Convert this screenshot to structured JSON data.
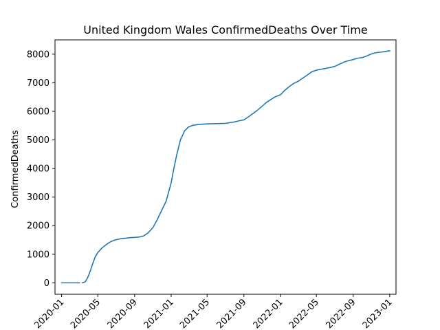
{
  "chart_data": {
    "type": "line",
    "title": "United Kingdom Wales ConfirmedDeaths Over Time",
    "xlabel": "",
    "ylabel": "ConfirmedDeaths",
    "x_ticks": [
      "2020-01",
      "2020-05",
      "2020-09",
      "2021-01",
      "2021-05",
      "2021-09",
      "2022-01",
      "2022-05",
      "2022-09",
      "2023-01"
    ],
    "y_ticks": [
      0,
      1000,
      2000,
      3000,
      4000,
      5000,
      6000,
      7000,
      8000
    ],
    "xlim": [
      "2019-12-10",
      "2023-01-22"
    ],
    "ylim": [
      -400,
      8500
    ],
    "grid": false,
    "series": [
      {
        "color": "#1f77b4",
        "segments": [
          [
            [
              "2020-01-01",
              0
            ],
            [
              "2020-03-01",
              0
            ]
          ],
          [
            [
              "2020-03-10",
              0
            ],
            [
              "2020-03-15",
              10
            ],
            [
              "2020-03-20",
              40
            ],
            [
              "2020-03-25",
              120
            ],
            [
              "2020-03-31",
              250
            ],
            [
              "2020-04-07",
              450
            ],
            [
              "2020-04-15",
              700
            ],
            [
              "2020-04-22",
              900
            ],
            [
              "2020-05-01",
              1060
            ],
            [
              "2020-05-15",
              1220
            ],
            [
              "2020-06-01",
              1360
            ],
            [
              "2020-06-15",
              1450
            ],
            [
              "2020-07-01",
              1510
            ],
            [
              "2020-07-15",
              1540
            ],
            [
              "2020-08-01",
              1560
            ],
            [
              "2020-08-15",
              1580
            ],
            [
              "2020-09-01",
              1590
            ],
            [
              "2020-09-15",
              1600
            ],
            [
              "2020-10-01",
              1640
            ],
            [
              "2020-10-15",
              1740
            ],
            [
              "2020-11-01",
              1930
            ],
            [
              "2020-11-15",
              2200
            ],
            [
              "2020-12-01",
              2550
            ],
            [
              "2020-12-15",
              2850
            ],
            [
              "2021-01-01",
              3500
            ],
            [
              "2021-01-10",
              4000
            ],
            [
              "2021-01-20",
              4500
            ],
            [
              "2021-02-01",
              5000
            ],
            [
              "2021-02-15",
              5320
            ],
            [
              "2021-03-01",
              5460
            ],
            [
              "2021-03-15",
              5510
            ],
            [
              "2021-04-01",
              5540
            ],
            [
              "2021-05-01",
              5560
            ],
            [
              "2021-06-01",
              5570
            ],
            [
              "2021-07-01",
              5580
            ],
            [
              "2021-08-01",
              5630
            ],
            [
              "2021-08-20",
              5680
            ],
            [
              "2021-09-01",
              5700
            ],
            [
              "2021-09-15",
              5800
            ],
            [
              "2021-10-01",
              5920
            ],
            [
              "2021-10-15",
              6030
            ],
            [
              "2021-11-01",
              6180
            ],
            [
              "2021-11-15",
              6310
            ],
            [
              "2021-12-01",
              6420
            ],
            [
              "2021-12-15",
              6510
            ],
            [
              "2022-01-01",
              6580
            ],
            [
              "2022-01-15",
              6730
            ],
            [
              "2022-02-01",
              6880
            ],
            [
              "2022-02-15",
              6980
            ],
            [
              "2022-03-01",
              7050
            ],
            [
              "2022-03-15",
              7150
            ],
            [
              "2022-04-01",
              7270
            ],
            [
              "2022-04-15",
              7380
            ],
            [
              "2022-05-01",
              7440
            ],
            [
              "2022-05-15",
              7470
            ],
            [
              "2022-06-01",
              7500
            ],
            [
              "2022-06-15",
              7530
            ],
            [
              "2022-07-01",
              7570
            ],
            [
              "2022-07-15",
              7640
            ],
            [
              "2022-08-01",
              7720
            ],
            [
              "2022-08-15",
              7770
            ],
            [
              "2022-09-01",
              7810
            ],
            [
              "2022-09-15",
              7860
            ],
            [
              "2022-10-01",
              7880
            ],
            [
              "2022-10-15",
              7930
            ],
            [
              "2022-11-01",
              8010
            ],
            [
              "2022-11-15",
              8050
            ],
            [
              "2022-12-01",
              8070
            ],
            [
              "2022-12-15",
              8090
            ],
            [
              "2023-01-01",
              8120
            ]
          ]
        ]
      }
    ]
  }
}
